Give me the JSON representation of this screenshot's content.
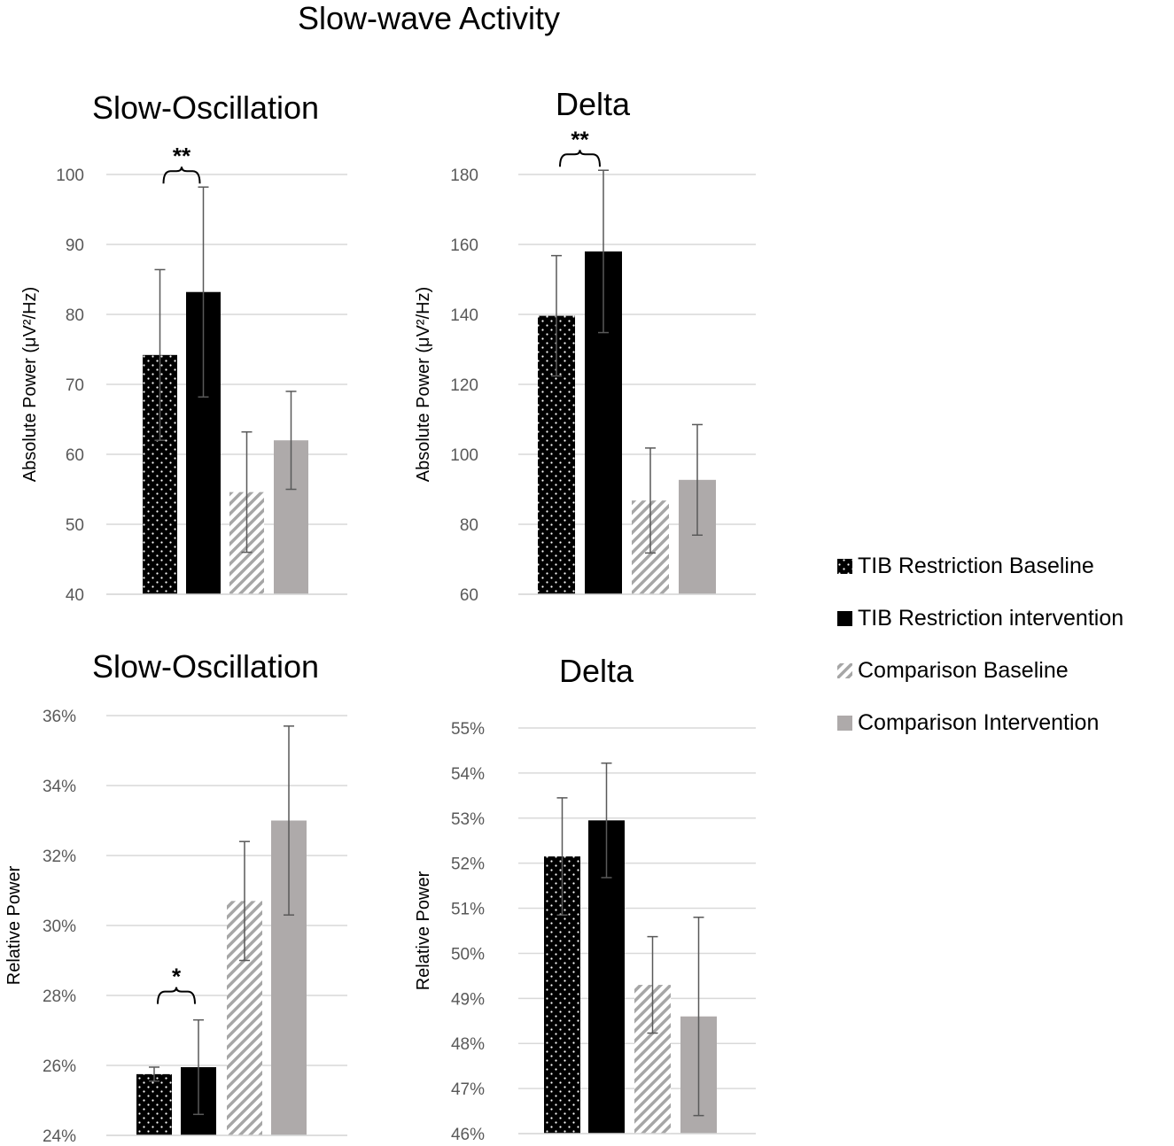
{
  "figure_title": "Slow-wave Activity",
  "legend": [
    {
      "label": "TIB Restriction Baseline",
      "pattern": "dots"
    },
    {
      "label": "TIB Restriction intervention",
      "pattern": "solid-black"
    },
    {
      "label": "Comparison Baseline",
      "pattern": "hatch"
    },
    {
      "label": "Comparison Intervention",
      "pattern": "solid-gray"
    }
  ],
  "colors": {
    "black": "#000000",
    "gray": "#aeaaaa",
    "hatch": "#a6a6a6",
    "grid": "#d9d9d9",
    "error": "#595959"
  },
  "chart_data": [
    {
      "type": "bar",
      "title": "Slow-Oscillation",
      "ylabel": "Absolute Power (μV²/Hz)",
      "ylim": [
        40,
        100
      ],
      "yticks": [
        40,
        50,
        60,
        70,
        80,
        90,
        100
      ],
      "ytick_labels": [
        "40",
        "50",
        "60",
        "70",
        "80",
        "90",
        "100"
      ],
      "categories": [
        "TIB Restriction Baseline",
        "TIB Restriction intervention",
        "Comparison Baseline",
        "Comparison Intervention"
      ],
      "values": [
        74.2,
        83.2,
        54.6,
        62.0
      ],
      "errors": [
        12.2,
        15.0,
        8.6,
        7.0
      ],
      "significance": [
        {
          "between": [
            0,
            1
          ],
          "label": "**"
        }
      ]
    },
    {
      "type": "bar",
      "title": "Delta",
      "ylabel": "Absolute Power (μV²/Hz)",
      "ylim": [
        60,
        180
      ],
      "yticks": [
        60,
        80,
        100,
        120,
        140,
        160,
        180
      ],
      "ytick_labels": [
        "60",
        "80",
        "100",
        "120",
        "140",
        "160",
        "180"
      ],
      "categories": [
        "TIB Restriction Baseline",
        "TIB Restriction intervention",
        "Comparison Baseline",
        "Comparison Intervention"
      ],
      "values": [
        139.6,
        158.0,
        86.8,
        92.7
      ],
      "errors": [
        17.2,
        23.2,
        15.0,
        15.8
      ],
      "significance": [
        {
          "between": [
            0,
            1
          ],
          "label": "**"
        }
      ]
    },
    {
      "type": "bar",
      "title": "Slow-Oscillation",
      "ylabel": "Relative Power",
      "ylim": [
        24,
        36
      ],
      "yticks": [
        24,
        26,
        28,
        30,
        32,
        34,
        36
      ],
      "ytick_labels": [
        "24%",
        "26%",
        "28%",
        "30%",
        "32%",
        "34%",
        "36%"
      ],
      "categories": [
        "TIB Restriction Baseline",
        "TIB Restriction intervention",
        "Comparison Baseline",
        "Comparison Intervention"
      ],
      "values": [
        25.75,
        25.95,
        30.7,
        33.0
      ],
      "errors": [
        0.2,
        1.35,
        1.7,
        2.7
      ],
      "significance": [
        {
          "between": [
            0,
            1
          ],
          "label": "*"
        }
      ]
    },
    {
      "type": "bar",
      "title": "Delta",
      "ylabel": "Relative Power",
      "ylim": [
        46,
        55
      ],
      "yticks": [
        46,
        47,
        48,
        49,
        50,
        51,
        52,
        53,
        54,
        55
      ],
      "ytick_labels": [
        "46%",
        "47%",
        "48%",
        "49%",
        "50%",
        "51%",
        "52%",
        "53%",
        "54%",
        "55%"
      ],
      "categories": [
        "TIB Restriction Baseline",
        "TIB Restriction intervention",
        "Comparison Baseline",
        "Comparison Intervention"
      ],
      "values": [
        52.15,
        52.95,
        49.3,
        48.6
      ],
      "errors": [
        1.3,
        1.27,
        1.07,
        2.2
      ],
      "significance": []
    }
  ]
}
